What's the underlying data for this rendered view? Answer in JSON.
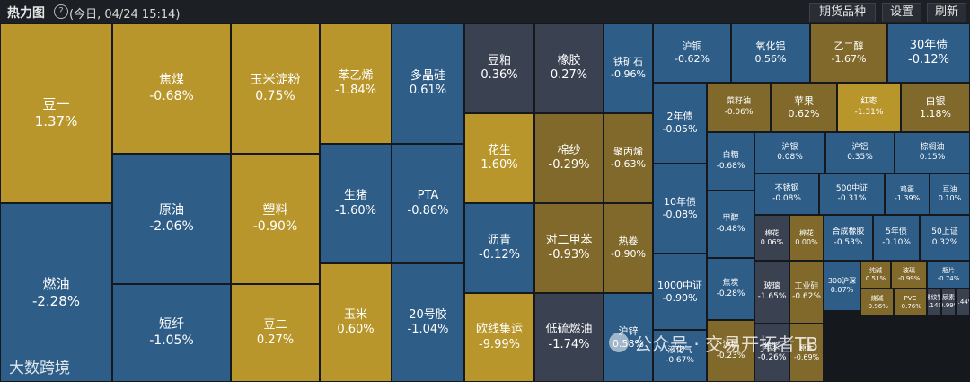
{
  "header": {
    "title": "热力图",
    "help_icon_glyph": "?",
    "date": "(今日, 04/24 15:14)",
    "buttons": [
      "期货品种",
      "设置",
      "刷新"
    ]
  },
  "watermarks": {
    "wechat": "公众号 · 交易开拓者TB",
    "brand": "大数跨境"
  },
  "colors": {
    "up_strong": "#b8962b",
    "up": "#80692a",
    "down": "#2e5d87",
    "down_strong": "#336594",
    "flat": "#3a4150"
  },
  "cells": [
    {
      "n": "豆一",
      "v": "1.37%"
    },
    {
      "n": "燃油",
      "v": "-2.28%"
    },
    {
      "n": "焦煤",
      "v": "-0.68%"
    },
    {
      "n": "原油",
      "v": "-2.06%"
    },
    {
      "n": "短纤",
      "v": "-1.05%"
    },
    {
      "n": "玉米淀粉",
      "v": "0.75%"
    },
    {
      "n": "塑料",
      "v": "-0.90%"
    },
    {
      "n": "豆二",
      "v": "0.27%"
    },
    {
      "n": "苯乙烯",
      "v": "-1.84%"
    },
    {
      "n": "生猪",
      "v": "-1.60%"
    },
    {
      "n": "玉米",
      "v": "0.60%"
    },
    {
      "n": "多晶硅",
      "v": "0.61%"
    },
    {
      "n": "PTA",
      "v": "-0.86%"
    },
    {
      "n": "20号胶",
      "v": "-1.04%"
    },
    {
      "n": "豆粕",
      "v": "0.36%"
    },
    {
      "n": "花生",
      "v": "1.60%"
    },
    {
      "n": "沥青",
      "v": "-0.12%"
    },
    {
      "n": "欧线集运",
      "v": "-9.99%"
    },
    {
      "n": "橡胶",
      "v": "0.27%"
    },
    {
      "n": "棉纱",
      "v": "-0.29%"
    },
    {
      "n": "对二甲苯",
      "v": "-0.93%"
    },
    {
      "n": "低硫燃油",
      "v": "-1.74%"
    },
    {
      "n": "铁矿石",
      "v": "-0.96%"
    },
    {
      "n": "聚丙烯",
      "v": "-0.63%"
    },
    {
      "n": "热卷",
      "v": "-0.90%"
    },
    {
      "n": "沪锌",
      "v": "0.58%"
    },
    {
      "n": "沪铜",
      "v": "-0.62%"
    },
    {
      "n": "氧化铝",
      "v": "0.56%"
    },
    {
      "n": "乙二醇",
      "v": "-1.67%"
    },
    {
      "n": "30年债",
      "v": "-0.12%"
    },
    {
      "n": "2年债",
      "v": "-0.05%"
    },
    {
      "n": "10年债",
      "v": "-0.08%"
    },
    {
      "n": "1000中证",
      "v": "-0.90%"
    },
    {
      "n": "菜籽油",
      "v": "-0.06%"
    },
    {
      "n": "苹果",
      "v": "0.62%"
    },
    {
      "n": "红枣",
      "v": "-1.31%"
    },
    {
      "n": "白银",
      "v": "1.18%"
    },
    {
      "n": "白糖",
      "v": "-0.68%"
    },
    {
      "n": "沪银",
      "v": "0.08%"
    },
    {
      "n": "沪铝",
      "v": "0.35%"
    },
    {
      "n": "棕榈油",
      "v": "0.15%"
    },
    {
      "n": "不锈钢",
      "v": "-0.08%"
    },
    {
      "n": "500中证",
      "v": "-0.31%"
    },
    {
      "n": "鸡蛋",
      "v": "-1.39%"
    },
    {
      "n": "豆油",
      "v": "0.10%"
    },
    {
      "n": "甲醇",
      "v": "-0.48%"
    },
    {
      "n": "棉花",
      "v": "0.06%"
    },
    {
      "n": "棉花",
      "v": "0.00%"
    },
    {
      "n": "合成橡胶",
      "v": "-0.53%"
    },
    {
      "n": "5年债",
      "v": "-0.10%"
    },
    {
      "n": "50上证",
      "v": "0.32%"
    },
    {
      "n": "焦炭",
      "v": "-0.28%"
    },
    {
      "n": "纯碱",
      "v": "0.51%"
    },
    {
      "n": "玻璃",
      "v": "-0.99%"
    },
    {
      "n": "瓶片",
      "v": "-0.74%"
    },
    {
      "n": "300沪深",
      "v": "0.07%"
    },
    {
      "n": "玻璃",
      "v": "-1.65%"
    },
    {
      "n": "工业硅",
      "v": "-0.62%"
    },
    {
      "n": "烧碱",
      "v": "-0.96%"
    },
    {
      "n": "PVC",
      "v": "-0.76%"
    },
    {
      "n": "螺纹钢",
      "v": "0.14%"
    },
    {
      "n": "尿素",
      "v": "-0.99%"
    },
    {
      "n": "",
      "v": "-0.44%"
    },
    {
      "n": "液化气",
      "v": "-0.67%"
    },
    {
      "n": "沪镍",
      "v": "-0.23%"
    },
    {
      "n": "纸浆",
      "v": "-0.26%"
    },
    {
      "n": "原木",
      "v": "-0.69%"
    }
  ]
}
